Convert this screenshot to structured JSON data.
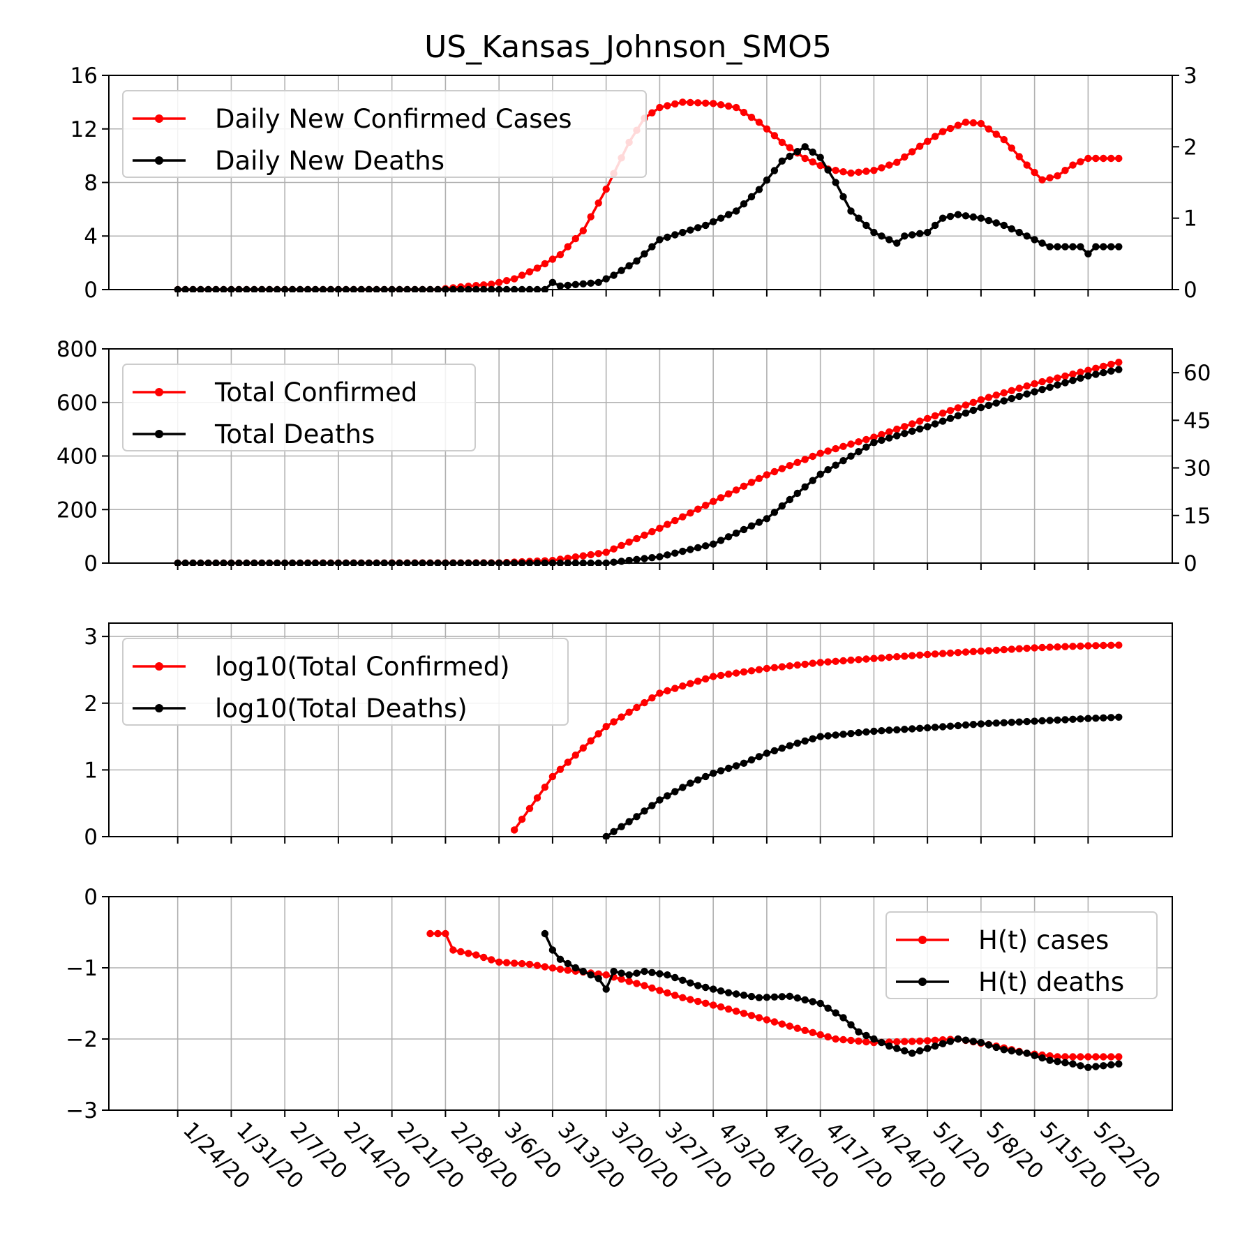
{
  "chart_data": [
    {
      "type": "line",
      "title": "US_Kansas_Johnson_SMO5",
      "xlabel": "",
      "ylabel": "",
      "ylim": [
        0,
        16
      ],
      "yticks": [
        "0",
        "4",
        "8",
        "12",
        "16"
      ],
      "y2lim": [
        0,
        3
      ],
      "y2ticks": [
        "0",
        "1",
        "2",
        "3"
      ],
      "x_range": [
        "1/24/20",
        "5/24/20"
      ],
      "xticks": [
        "1/24/20",
        "1/31/20",
        "2/7/20",
        "2/14/20",
        "2/21/20",
        "2/28/20",
        "3/6/20",
        "3/13/20",
        "3/20/20",
        "3/27/20",
        "4/3/20",
        "4/10/20",
        "4/17/20",
        "4/24/20",
        "5/1/20",
        "5/8/20",
        "5/15/20",
        "5/22/20"
      ],
      "grid": true,
      "legend_position": "top-left",
      "series": [
        {
          "name": "Daily New Confirmed Cases",
          "color": "#ff0000",
          "axis": "left",
          "points": [
            [
              "1/24/20",
              0
            ],
            [
              "2/27/20",
              0
            ],
            [
              "3/1/20",
              0.2
            ],
            [
              "3/5/20",
              0.4
            ],
            [
              "3/8/20",
              0.8
            ],
            [
              "3/11/20",
              1.6
            ],
            [
              "3/14/20",
              2.6
            ],
            [
              "3/17/20",
              4.4
            ],
            [
              "3/20/20",
              7.5
            ],
            [
              "3/23/20",
              11
            ],
            [
              "3/25/20",
              12.8
            ],
            [
              "3/27/20",
              13.6
            ],
            [
              "3/30/20",
              14
            ],
            [
              "4/3/20",
              13.9
            ],
            [
              "4/6/20",
              13.6
            ],
            [
              "4/9/20",
              12.5
            ],
            [
              "4/12/20",
              11
            ],
            [
              "4/15/20",
              9.8
            ],
            [
              "4/18/20",
              9
            ],
            [
              "4/21/20",
              8.7
            ],
            [
              "4/24/20",
              8.9
            ],
            [
              "4/27/20",
              9.5
            ],
            [
              "4/30/20",
              10.7
            ],
            [
              "5/3/20",
              11.8
            ],
            [
              "5/6/20",
              12.5
            ],
            [
              "5/8/20",
              12.4
            ],
            [
              "5/11/20",
              11.2
            ],
            [
              "5/14/20",
              9.3
            ],
            [
              "5/16/20",
              8.2
            ],
            [
              "5/18/20",
              8.5
            ],
            [
              "5/20/20",
              9.3
            ],
            [
              "5/22/20",
              9.8
            ],
            [
              "5/26/20",
              9.8
            ]
          ]
        },
        {
          "name": "Daily New Deaths",
          "color": "#000000",
          "axis": "right",
          "points": [
            [
              "1/24/20",
              0
            ],
            [
              "3/12/20",
              0
            ],
            [
              "3/13/20",
              0.1
            ],
            [
              "3/14/20",
              0.05
            ],
            [
              "3/19/20",
              0.1
            ],
            [
              "3/21/20",
              0.2
            ],
            [
              "3/24/20",
              0.4
            ],
            [
              "3/27/20",
              0.7
            ],
            [
              "3/30/20",
              0.8
            ],
            [
              "4/2/20",
              0.9
            ],
            [
              "4/6/20",
              1.1
            ],
            [
              "4/9/20",
              1.4
            ],
            [
              "4/12/20",
              1.8
            ],
            [
              "4/15/20",
              2
            ],
            [
              "4/17/20",
              1.85
            ],
            [
              "4/19/20",
              1.5
            ],
            [
              "4/21/20",
              1.1
            ],
            [
              "4/24/20",
              0.8
            ],
            [
              "4/27/20",
              0.65
            ],
            [
              "4/28/20",
              0.75
            ],
            [
              "5/1/20",
              0.8
            ],
            [
              "5/3/20",
              1
            ],
            [
              "5/5/20",
              1.05
            ],
            [
              "5/8/20",
              1
            ],
            [
              "5/11/20",
              0.9
            ],
            [
              "5/14/20",
              0.75
            ],
            [
              "5/17/20",
              0.6
            ],
            [
              "5/21/20",
              0.6
            ],
            [
              "5/22/20",
              0.5
            ],
            [
              "5/23/20",
              0.6
            ],
            [
              "5/26/20",
              0.6
            ]
          ]
        }
      ]
    },
    {
      "type": "line",
      "title": "",
      "xlabel": "",
      "ylabel": "",
      "ylim": [
        0,
        800
      ],
      "yticks": [
        "0",
        "200",
        "400",
        "600",
        "800"
      ],
      "y2lim": [
        0,
        67.5
      ],
      "y2ticks": [
        "0",
        "15",
        "30",
        "45",
        "60"
      ],
      "x_range": [
        "1/24/20",
        "5/24/20"
      ],
      "grid": true,
      "legend_position": "top-left",
      "series": [
        {
          "name": "Total Confirmed",
          "color": "#ff0000",
          "axis": "left",
          "points": [
            [
              "1/24/20",
              0
            ],
            [
              "3/6/20",
              1
            ],
            [
              "3/13/20",
              10
            ],
            [
              "3/20/20",
              40
            ],
            [
              "3/27/20",
              130
            ],
            [
              "4/3/20",
              230
            ],
            [
              "4/10/20",
              330
            ],
            [
              "4/17/20",
              410
            ],
            [
              "4/24/20",
              470
            ],
            [
              "5/1/20",
              540
            ],
            [
              "5/8/20",
              610
            ],
            [
              "5/15/20",
              670
            ],
            [
              "5/22/20",
              720
            ],
            [
              "5/26/20",
              750
            ]
          ]
        },
        {
          "name": "Total Deaths",
          "color": "#000000",
          "axis": "right",
          "points": [
            [
              "1/24/20",
              0
            ],
            [
              "3/20/20",
              0
            ],
            [
              "3/27/20",
              2
            ],
            [
              "4/3/20",
              6
            ],
            [
              "4/10/20",
              14
            ],
            [
              "4/17/20",
              28
            ],
            [
              "4/24/20",
              38
            ],
            [
              "5/1/20",
              43
            ],
            [
              "5/8/20",
              49
            ],
            [
              "5/15/20",
              54
            ],
            [
              "5/22/20",
              59
            ],
            [
              "5/26/20",
              61
            ]
          ]
        }
      ]
    },
    {
      "type": "line",
      "title": "",
      "xlabel": "",
      "ylabel": "",
      "ylim": [
        0,
        3.2
      ],
      "yticks": [
        "0",
        "1",
        "2",
        "3"
      ],
      "x_range": [
        "1/24/20",
        "5/24/20"
      ],
      "grid": true,
      "legend_position": "top-left",
      "series": [
        {
          "name": "log10(Total Confirmed)",
          "color": "#ff0000",
          "points": [
            [
              "3/8/20",
              0.1
            ],
            [
              "3/13/20",
              0.9
            ],
            [
              "3/20/20",
              1.65
            ],
            [
              "3/27/20",
              2.15
            ],
            [
              "4/3/20",
              2.4
            ],
            [
              "4/10/20",
              2.52
            ],
            [
              "4/17/20",
              2.61
            ],
            [
              "4/24/20",
              2.67
            ],
            [
              "5/1/20",
              2.73
            ],
            [
              "5/8/20",
              2.78
            ],
            [
              "5/15/20",
              2.83
            ],
            [
              "5/22/20",
              2.86
            ],
            [
              "5/26/20",
              2.87
            ]
          ]
        },
        {
          "name": "log10(Total Deaths)",
          "color": "#000000",
          "points": [
            [
              "3/20/20",
              0
            ],
            [
              "3/24/20",
              0.3
            ],
            [
              "3/27/20",
              0.55
            ],
            [
              "3/31/20",
              0.8
            ],
            [
              "4/3/20",
              0.95
            ],
            [
              "4/7/20",
              1.1
            ],
            [
              "4/10/20",
              1.25
            ],
            [
              "4/14/20",
              1.4
            ],
            [
              "4/17/20",
              1.5
            ],
            [
              "4/24/20",
              1.58
            ],
            [
              "5/1/20",
              1.63
            ],
            [
              "5/8/20",
              1.69
            ],
            [
              "5/15/20",
              1.73
            ],
            [
              "5/22/20",
              1.77
            ],
            [
              "5/26/20",
              1.79
            ]
          ]
        }
      ]
    },
    {
      "type": "line",
      "title": "",
      "xlabel": "",
      "ylabel": "",
      "ylim": [
        -3,
        0
      ],
      "yticks": [
        "−3",
        "−2",
        "−1",
        "0"
      ],
      "x_range": [
        "1/24/20",
        "5/24/20"
      ],
      "grid": true,
      "legend_position": "top-right",
      "series": [
        {
          "name": "H(t) cases",
          "color": "#ff0000",
          "points": [
            [
              "2/26/20",
              -0.52
            ],
            [
              "2/28/20",
              -0.52
            ],
            [
              "2/29/20",
              -0.75
            ],
            [
              "3/3/20",
              -0.82
            ],
            [
              "3/6/20",
              -0.92
            ],
            [
              "3/10/20",
              -0.95
            ],
            [
              "3/14/20",
              -1.02
            ],
            [
              "3/20/20",
              -1.1
            ],
            [
              "3/25/20",
              -1.25
            ],
            [
              "3/30/20",
              -1.42
            ],
            [
              "4/4/20",
              -1.55
            ],
            [
              "4/9/20",
              -1.7
            ],
            [
              "4/14/20",
              -1.85
            ],
            [
              "4/19/20",
              -2
            ],
            [
              "4/24/20",
              -2.05
            ],
            [
              "4/30/20",
              -2.03
            ],
            [
              "5/5/20",
              -2
            ],
            [
              "5/10/20",
              -2.1
            ],
            [
              "5/14/20",
              -2.2
            ],
            [
              "5/18/20",
              -2.25
            ],
            [
              "5/26/20",
              -2.25
            ]
          ]
        },
        {
          "name": "H(t) deaths",
          "color": "#000000",
          "points": [
            [
              "3/12/20",
              -0.52
            ],
            [
              "3/13/20",
              -0.75
            ],
            [
              "3/14/20",
              -0.88
            ],
            [
              "3/16/20",
              -1
            ],
            [
              "3/19/20",
              -1.15
            ],
            [
              "3/20/20",
              -1.3
            ],
            [
              "3/21/20",
              -1.05
            ],
            [
              "3/23/20",
              -1.1
            ],
            [
              "3/25/20",
              -1.05
            ],
            [
              "3/28/20",
              -1.1
            ],
            [
              "4/1/20",
              -1.25
            ],
            [
              "4/5/20",
              -1.35
            ],
            [
              "4/9/20",
              -1.42
            ],
            [
              "4/13/20",
              -1.4
            ],
            [
              "4/17/20",
              -1.5
            ],
            [
              "4/20/20",
              -1.7
            ],
            [
              "4/22/20",
              -1.9
            ],
            [
              "4/26/20",
              -2.1
            ],
            [
              "4/29/20",
              -2.2
            ],
            [
              "5/2/20",
              -2.1
            ],
            [
              "5/5/20",
              -2
            ],
            [
              "5/8/20",
              -2.05
            ],
            [
              "5/11/20",
              -2.15
            ],
            [
              "5/14/20",
              -2.2
            ],
            [
              "5/17/20",
              -2.3
            ],
            [
              "5/20/20",
              -2.35
            ],
            [
              "5/22/20",
              -2.4
            ],
            [
              "5/26/20",
              -2.35
            ]
          ]
        }
      ]
    }
  ]
}
